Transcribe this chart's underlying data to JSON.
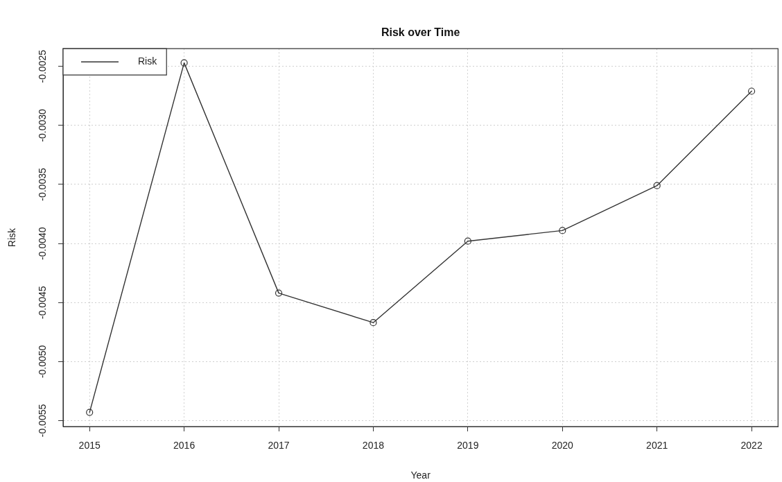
{
  "chart_data": {
    "type": "line",
    "title": "Risk over Time",
    "xlabel": "Year",
    "ylabel": "Risk",
    "x": [
      2015,
      2016,
      2017,
      2018,
      2019,
      2020,
      2021,
      2022
    ],
    "series": [
      {
        "name": "Risk",
        "color": "#333333",
        "values": [
          -0.00543,
          -0.00247,
          -0.00442,
          -0.00467,
          -0.00398,
          -0.00389,
          -0.00351,
          -0.00271
        ]
      }
    ],
    "xlim": [
      2014.72,
      2022.28
    ],
    "xticks": [
      2015,
      2016,
      2017,
      2018,
      2019,
      2020,
      2021,
      2022
    ],
    "ylim": [
      -0.00555,
      -0.00235
    ],
    "yticks": [
      -0.0055,
      {
        "value": -0.005,
        "label": "-0.0050"
      },
      -0.0045,
      {
        "value": -0.004,
        "label": "-0.0040"
      },
      -0.0035,
      {
        "value": -0.003,
        "label": "-0.0030"
      },
      -0.0025
    ],
    "grid": true,
    "legend": "top left",
    "marker": "circle",
    "line_style": "solid"
  }
}
